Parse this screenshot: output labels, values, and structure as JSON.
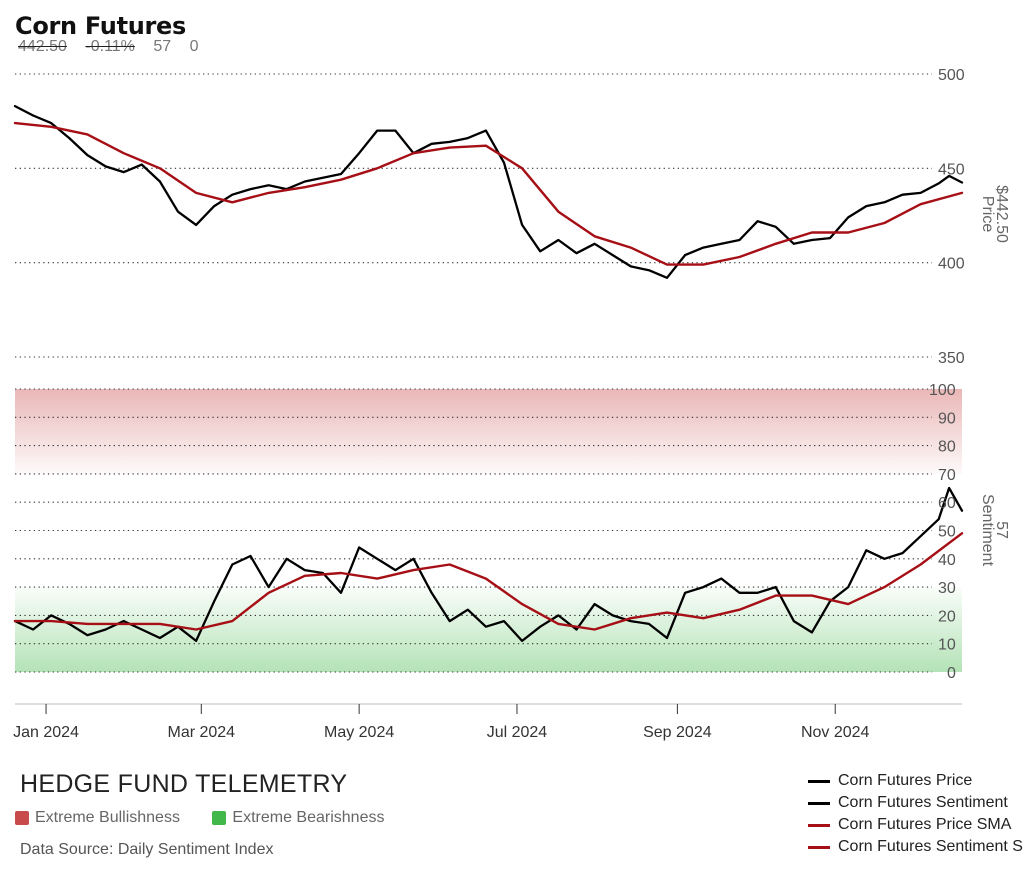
{
  "header": {
    "title": "Corn Futures",
    "price": "442.50",
    "change": "-0.11%",
    "sentiment": "57",
    "extra": "0"
  },
  "footer": {
    "brand": "HEDGE FUND TELEMETRY",
    "zone_bull": "Extreme Bullishness",
    "zone_bear": "Extreme Bearishness",
    "source": "Data Source: Daily Sentiment Index"
  },
  "colors": {
    "price_line": "#000000",
    "sma_line": "#a50f15",
    "bull_zone": "#c94a4a",
    "bear_zone": "#43b84a"
  },
  "chart_data": {
    "type": "line",
    "x_ticks": [
      "Jan 2024",
      "Mar 2024",
      "May 2024",
      "Jul 2024",
      "Sep 2024",
      "Nov 2024"
    ],
    "x_tick_dates": [
      "2024-01-01",
      "2024-03-01",
      "2024-05-01",
      "2024-07-01",
      "2024-09-01",
      "2024-11-01"
    ],
    "x_range": [
      "2023-12-20",
      "2024-12-20"
    ],
    "price_axis": {
      "label": "Price",
      "last_label": "$442.50",
      "ylim": [
        350,
        500
      ],
      "ticks": [
        500,
        450,
        400,
        350
      ]
    },
    "sentiment_axis": {
      "label": "Sentiment",
      "last_label": "57",
      "ylim": [
        0,
        100
      ],
      "ticks": [
        100,
        90,
        80,
        70,
        60,
        50,
        40,
        30,
        20,
        10,
        0
      ]
    },
    "zones": [
      {
        "name": "Extreme Bullishness",
        "from": 70,
        "to": 100,
        "color": "#c94a4a"
      },
      {
        "name": "Extreme Bearishness",
        "from": 0,
        "to": 30,
        "color": "#43b84a"
      }
    ],
    "legend": [
      "Corn Futures Price",
      "Corn Futures Sentiment",
      "Corn Futures Price SMA",
      "Corn Futures Sentiment SMA"
    ],
    "series": [
      {
        "name": "Corn Futures Price",
        "panel": "price",
        "color": "#000000",
        "points": [
          [
            "2023-12-20",
            483
          ],
          [
            "2023-12-27",
            478
          ],
          [
            "2024-01-03",
            474
          ],
          [
            "2024-01-10",
            466
          ],
          [
            "2024-01-17",
            457
          ],
          [
            "2024-01-24",
            451
          ],
          [
            "2024-01-31",
            448
          ],
          [
            "2024-02-07",
            452
          ],
          [
            "2024-02-14",
            443
          ],
          [
            "2024-02-21",
            427
          ],
          [
            "2024-02-28",
            420
          ],
          [
            "2024-03-06",
            430
          ],
          [
            "2024-03-13",
            436
          ],
          [
            "2024-03-20",
            439
          ],
          [
            "2024-03-27",
            441
          ],
          [
            "2024-04-03",
            439
          ],
          [
            "2024-04-10",
            443
          ],
          [
            "2024-04-17",
            445
          ],
          [
            "2024-04-24",
            447
          ],
          [
            "2024-05-01",
            458
          ],
          [
            "2024-05-08",
            470
          ],
          [
            "2024-05-15",
            470
          ],
          [
            "2024-05-22",
            458
          ],
          [
            "2024-05-29",
            463
          ],
          [
            "2024-06-05",
            464
          ],
          [
            "2024-06-12",
            466
          ],
          [
            "2024-06-19",
            470
          ],
          [
            "2024-06-26",
            453
          ],
          [
            "2024-07-03",
            420
          ],
          [
            "2024-07-10",
            406
          ],
          [
            "2024-07-17",
            412
          ],
          [
            "2024-07-24",
            405
          ],
          [
            "2024-07-31",
            410
          ],
          [
            "2024-08-07",
            404
          ],
          [
            "2024-08-14",
            398
          ],
          [
            "2024-08-21",
            396
          ],
          [
            "2024-08-28",
            392
          ],
          [
            "2024-09-04",
            404
          ],
          [
            "2024-09-11",
            408
          ],
          [
            "2024-09-18",
            410
          ],
          [
            "2024-09-25",
            412
          ],
          [
            "2024-10-02",
            422
          ],
          [
            "2024-10-09",
            419
          ],
          [
            "2024-10-16",
            410
          ],
          [
            "2024-10-23",
            412
          ],
          [
            "2024-10-30",
            413
          ],
          [
            "2024-11-06",
            424
          ],
          [
            "2024-11-13",
            430
          ],
          [
            "2024-11-20",
            432
          ],
          [
            "2024-11-27",
            436
          ],
          [
            "2024-12-04",
            437
          ],
          [
            "2024-12-11",
            442
          ],
          [
            "2024-12-15",
            446
          ],
          [
            "2024-12-20",
            442.5
          ]
        ]
      },
      {
        "name": "Corn Futures Price SMA",
        "panel": "price",
        "color": "#a50f15",
        "points": [
          [
            "2023-12-20",
            474
          ],
          [
            "2024-01-03",
            472
          ],
          [
            "2024-01-17",
            468
          ],
          [
            "2024-01-31",
            458
          ],
          [
            "2024-02-14",
            450
          ],
          [
            "2024-02-28",
            437
          ],
          [
            "2024-03-13",
            432
          ],
          [
            "2024-03-27",
            437
          ],
          [
            "2024-04-10",
            440
          ],
          [
            "2024-04-24",
            444
          ],
          [
            "2024-05-08",
            450
          ],
          [
            "2024-05-22",
            458
          ],
          [
            "2024-06-05",
            461
          ],
          [
            "2024-06-19",
            462
          ],
          [
            "2024-07-03",
            450
          ],
          [
            "2024-07-17",
            427
          ],
          [
            "2024-07-31",
            414
          ],
          [
            "2024-08-14",
            408
          ],
          [
            "2024-08-28",
            399
          ],
          [
            "2024-09-11",
            399
          ],
          [
            "2024-09-25",
            403
          ],
          [
            "2024-10-09",
            410
          ],
          [
            "2024-10-23",
            416
          ],
          [
            "2024-11-06",
            416
          ],
          [
            "2024-11-20",
            421
          ],
          [
            "2024-12-04",
            431
          ],
          [
            "2024-12-20",
            437
          ]
        ]
      },
      {
        "name": "Corn Futures Sentiment",
        "panel": "sentiment",
        "color": "#000000",
        "points": [
          [
            "2023-12-20",
            18
          ],
          [
            "2023-12-27",
            15
          ],
          [
            "2024-01-03",
            20
          ],
          [
            "2024-01-10",
            17
          ],
          [
            "2024-01-17",
            13
          ],
          [
            "2024-01-24",
            15
          ],
          [
            "2024-01-31",
            18
          ],
          [
            "2024-02-07",
            15
          ],
          [
            "2024-02-14",
            12
          ],
          [
            "2024-02-21",
            16
          ],
          [
            "2024-02-28",
            11
          ],
          [
            "2024-03-06",
            25
          ],
          [
            "2024-03-13",
            38
          ],
          [
            "2024-03-20",
            41
          ],
          [
            "2024-03-27",
            30
          ],
          [
            "2024-04-03",
            40
          ],
          [
            "2024-04-10",
            36
          ],
          [
            "2024-04-17",
            35
          ],
          [
            "2024-04-24",
            28
          ],
          [
            "2024-05-01",
            44
          ],
          [
            "2024-05-08",
            40
          ],
          [
            "2024-05-15",
            36
          ],
          [
            "2024-05-22",
            40
          ],
          [
            "2024-05-29",
            28
          ],
          [
            "2024-06-05",
            18
          ],
          [
            "2024-06-12",
            22
          ],
          [
            "2024-06-19",
            16
          ],
          [
            "2024-06-26",
            18
          ],
          [
            "2024-07-03",
            11
          ],
          [
            "2024-07-10",
            16
          ],
          [
            "2024-07-17",
            20
          ],
          [
            "2024-07-24",
            15
          ],
          [
            "2024-07-31",
            24
          ],
          [
            "2024-08-07",
            20
          ],
          [
            "2024-08-14",
            18
          ],
          [
            "2024-08-21",
            17
          ],
          [
            "2024-08-28",
            12
          ],
          [
            "2024-09-04",
            28
          ],
          [
            "2024-09-11",
            30
          ],
          [
            "2024-09-18",
            33
          ],
          [
            "2024-09-25",
            28
          ],
          [
            "2024-10-02",
            28
          ],
          [
            "2024-10-09",
            30
          ],
          [
            "2024-10-16",
            18
          ],
          [
            "2024-10-23",
            14
          ],
          [
            "2024-10-30",
            25
          ],
          [
            "2024-11-06",
            30
          ],
          [
            "2024-11-13",
            43
          ],
          [
            "2024-11-20",
            40
          ],
          [
            "2024-11-27",
            42
          ],
          [
            "2024-12-04",
            48
          ],
          [
            "2024-12-11",
            54
          ],
          [
            "2024-12-15",
            65
          ],
          [
            "2024-12-20",
            57
          ]
        ]
      },
      {
        "name": "Corn Futures Sentiment SMA",
        "panel": "sentiment",
        "color": "#a50f15",
        "points": [
          [
            "2023-12-20",
            18
          ],
          [
            "2024-01-03",
            18
          ],
          [
            "2024-01-17",
            17
          ],
          [
            "2024-01-31",
            17
          ],
          [
            "2024-02-14",
            17
          ],
          [
            "2024-02-28",
            15
          ],
          [
            "2024-03-13",
            18
          ],
          [
            "2024-03-27",
            28
          ],
          [
            "2024-04-10",
            34
          ],
          [
            "2024-04-24",
            35
          ],
          [
            "2024-05-08",
            33
          ],
          [
            "2024-05-22",
            36
          ],
          [
            "2024-06-05",
            38
          ],
          [
            "2024-06-19",
            33
          ],
          [
            "2024-07-03",
            24
          ],
          [
            "2024-07-17",
            17
          ],
          [
            "2024-07-31",
            15
          ],
          [
            "2024-08-14",
            19
          ],
          [
            "2024-08-28",
            21
          ],
          [
            "2024-09-11",
            19
          ],
          [
            "2024-09-25",
            22
          ],
          [
            "2024-10-09",
            27
          ],
          [
            "2024-10-23",
            27
          ],
          [
            "2024-11-06",
            24
          ],
          [
            "2024-11-20",
            30
          ],
          [
            "2024-12-04",
            38
          ],
          [
            "2024-12-20",
            49
          ]
        ]
      }
    ]
  }
}
